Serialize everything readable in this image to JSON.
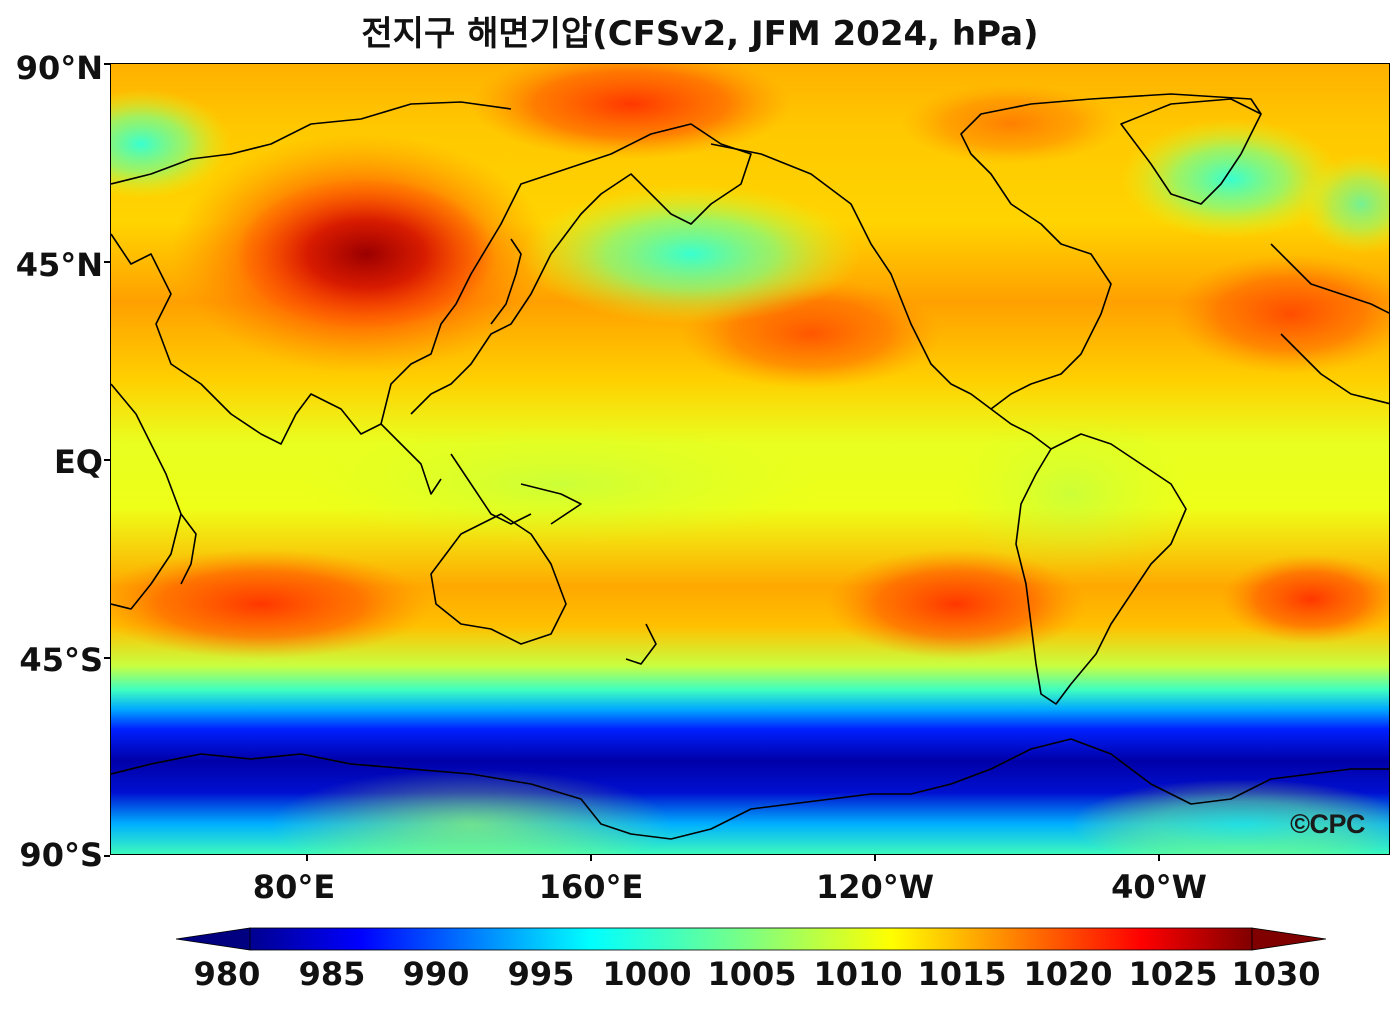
{
  "title": "전지구 해면기압(CFSv2, JFM 2024, hPa)",
  "lat_labels": [
    "90°N",
    "45°N",
    "EQ",
    "45°S",
    "90°S"
  ],
  "lon_labels": [
    "80°E",
    "160°E",
    "120°W",
    "40°W"
  ],
  "colorbar": {
    "labels": [
      "980",
      "985",
      "990",
      "995",
      "1000",
      "1005",
      "1010",
      "1015",
      "1020",
      "1025",
      "1030"
    ],
    "colormap": "jet",
    "min": 980,
    "max": 1030,
    "extend": "both"
  },
  "logo": "©CPC",
  "colors": {
    "subtropical_high": "#ff6a00",
    "siberian_high": "#a00000",
    "aleutian_low": "#40ffc0",
    "icelandic_low": "#30ffd0",
    "southern_ocean_low": "#000088",
    "tropics": "#ffe600",
    "coastline": "#000000"
  }
}
